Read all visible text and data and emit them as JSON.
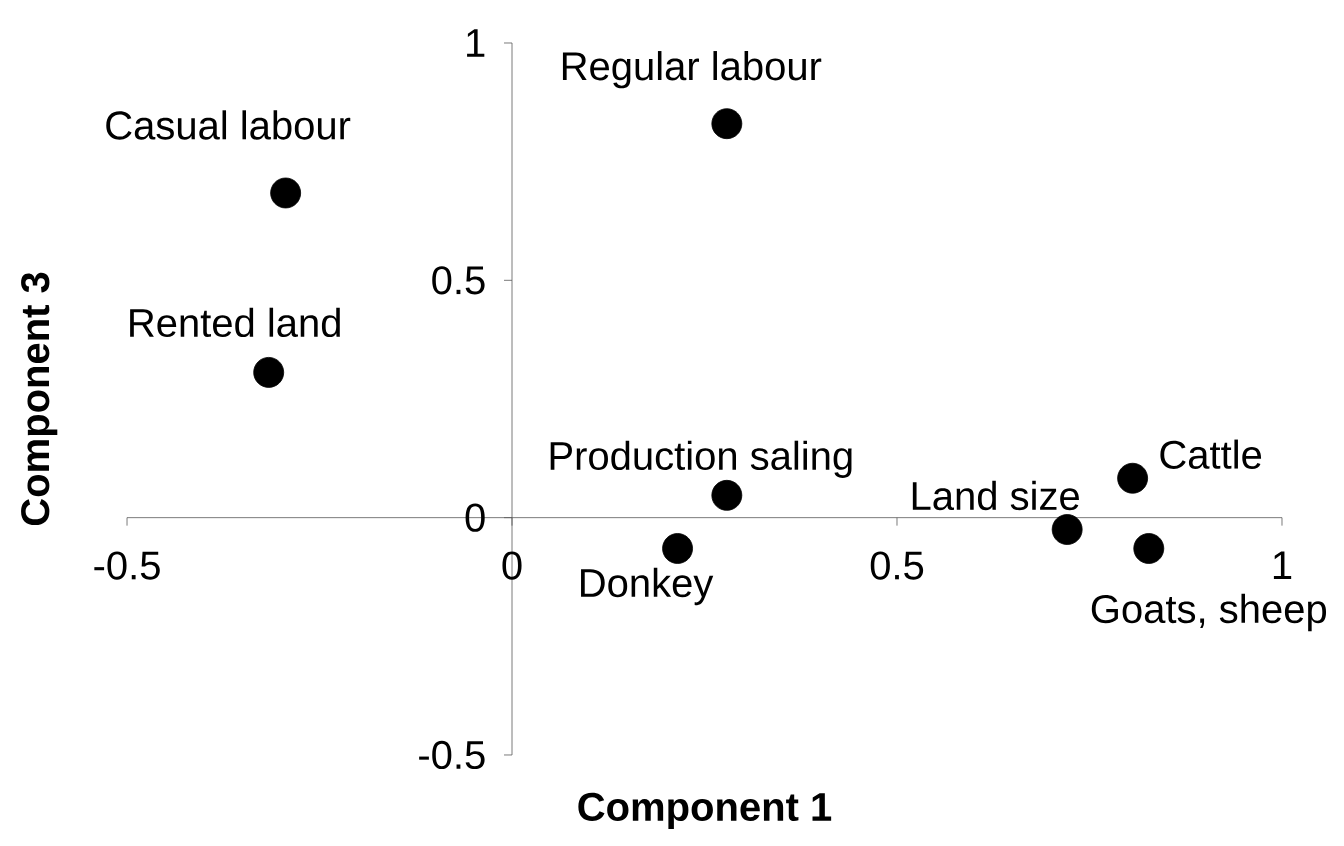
{
  "chart_data": {
    "type": "scatter",
    "xlabel": "Component 1",
    "ylabel": "Component 3",
    "x": [
      -0.294,
      -0.316,
      0.279,
      0.279,
      0.215,
      0.721,
      0.806,
      0.827
    ],
    "series": [
      {
        "color": "#000000",
        "values": [
          0.684,
          0.306,
          0.83,
          0.047,
          -0.065,
          -0.025,
          0.083,
          -0.065
        ]
      }
    ],
    "marker": "circle",
    "xlim": [
      -0.5,
      1
    ],
    "ylim": [
      -0.5,
      1
    ],
    "xticks": [
      -0.5,
      0,
      0.5,
      1
    ],
    "yticks": [
      -0.5,
      0,
      0.5,
      1
    ],
    "annotations": [
      {
        "text": "Casual labour",
        "x": -0.294,
        "y": 0.684
      },
      {
        "text": "Rented land",
        "x": -0.316,
        "y": 0.306
      },
      {
        "text": "Regular labour",
        "x": 0.279,
        "y": 0.83
      },
      {
        "text": "Production saling",
        "x": 0.279,
        "y": 0.047
      },
      {
        "text": "Donkey",
        "x": 0.215,
        "y": -0.065
      },
      {
        "text": "Land size",
        "x": 0.721,
        "y": -0.025
      },
      {
        "text": "Cattle",
        "x": 0.806,
        "y": 0.083
      },
      {
        "text": "Goats, sheep",
        "x": 0.827,
        "y": -0.065
      }
    ]
  }
}
